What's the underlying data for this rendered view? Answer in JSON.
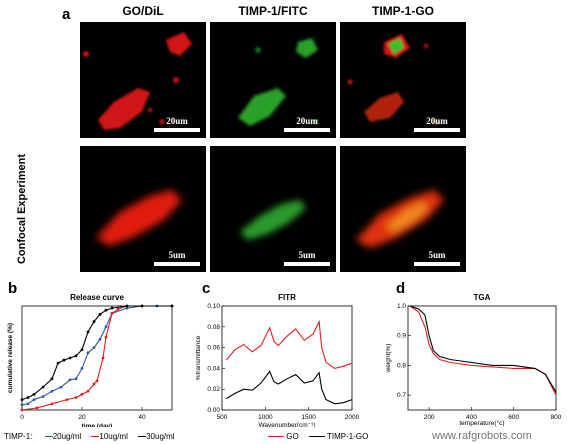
{
  "panel_a": {
    "letter": "a",
    "side_label": "Confocal Experiment",
    "columns": [
      {
        "title": "GO/DiL",
        "color": "#e02020"
      },
      {
        "title": "TIMP-1/FITC",
        "color": "#2fa02f"
      },
      {
        "title": "TIMP-1-GO",
        "color": "#2fa02f"
      }
    ],
    "scale_top": "20um",
    "scale_bottom": "5um"
  },
  "panel_b": {
    "letter": "b",
    "legend_prefix": "TIMP-1:",
    "legend": [
      "20ug/ml",
      "10ug/ml",
      "30ug/ml"
    ]
  },
  "panel_c": {
    "letter": "c",
    "legend": [
      "GO",
      "TIMP-1-GO"
    ]
  },
  "panel_d": {
    "letter": "d",
    "legend": [
      "GO",
      "TIMP-1-GO"
    ]
  },
  "watermark": "www.rafgrobots.com",
  "chart_data": [
    {
      "type": "line",
      "title": "Release curve",
      "xlabel": "time  (day)",
      "ylabel": "cumulative release  (%)",
      "xlim": [
        0,
        50
      ],
      "ylim": [
        0,
        1
      ],
      "xticks": [
        0,
        20,
        40
      ],
      "series": [
        {
          "name": "20ug/ml",
          "color": "#2c5aa0",
          "x": [
            0,
            2,
            4,
            7,
            10,
            13,
            16,
            18,
            20,
            22,
            24,
            26,
            28,
            30,
            35,
            40,
            45,
            50
          ],
          "y": [
            0.05,
            0.06,
            0.1,
            0.13,
            0.18,
            0.22,
            0.29,
            0.3,
            0.4,
            0.55,
            0.6,
            0.68,
            0.8,
            0.93,
            0.98,
            1.0,
            1.0,
            1.0
          ]
        },
        {
          "name": "10ug/ml",
          "color": "#e02020",
          "x": [
            0,
            5,
            10,
            15,
            18,
            20,
            22,
            24,
            25,
            27,
            28,
            30,
            32,
            35,
            40,
            50
          ],
          "y": [
            0.0,
            0.02,
            0.06,
            0.1,
            0.12,
            0.15,
            0.18,
            0.25,
            0.28,
            0.5,
            0.7,
            0.93,
            0.97,
            1.0,
            1.0,
            1.0
          ]
        },
        {
          "name": "30ug/ml",
          "color": "#000000",
          "x": [
            0,
            2,
            4,
            7,
            10,
            12,
            14,
            16,
            18,
            20,
            22,
            24,
            26,
            28,
            30,
            35,
            40,
            50
          ],
          "y": [
            0.1,
            0.12,
            0.15,
            0.22,
            0.3,
            0.45,
            0.48,
            0.5,
            0.52,
            0.58,
            0.75,
            0.85,
            0.92,
            0.96,
            0.98,
            1.0,
            1.0,
            1.0
          ]
        }
      ]
    },
    {
      "type": "line",
      "title": "FITR",
      "xlabel": "Wavenumber(cm⁻¹)",
      "ylabel": "%transmittance",
      "xlim": [
        500,
        2000
      ],
      "ylim": [
        0,
        0.1
      ],
      "xticks": [
        500,
        1000,
        1500,
        2000
      ],
      "yticks": [
        0.0,
        0.02,
        0.04,
        0.06,
        0.08,
        0.1
      ],
      "series": [
        {
          "name": "GO",
          "color": "#e02020",
          "x": [
            550,
            650,
            750,
            850,
            950,
            1050,
            1100,
            1150,
            1250,
            1350,
            1450,
            1550,
            1620,
            1650,
            1700,
            1800,
            1900,
            2000
          ],
          "y": [
            0.048,
            0.058,
            0.063,
            0.056,
            0.062,
            0.079,
            0.066,
            0.062,
            0.071,
            0.078,
            0.067,
            0.073,
            0.085,
            0.06,
            0.046,
            0.04,
            0.042,
            0.045
          ]
        },
        {
          "name": "TIMP-1-GO",
          "color": "#000000",
          "x": [
            550,
            650,
            750,
            850,
            950,
            1050,
            1100,
            1150,
            1250,
            1350,
            1450,
            1550,
            1620,
            1650,
            1700,
            1800,
            1900,
            2000
          ],
          "y": [
            0.011,
            0.016,
            0.02,
            0.019,
            0.026,
            0.037,
            0.027,
            0.025,
            0.03,
            0.034,
            0.026,
            0.028,
            0.036,
            0.02,
            0.01,
            0.006,
            0.007,
            0.01
          ]
        }
      ]
    },
    {
      "type": "line",
      "title": "TGA",
      "xlabel": "temperature(°c)",
      "ylabel": "weight(%)",
      "xlim": [
        100,
        800
      ],
      "ylim": [
        0.65,
        1.0
      ],
      "xticks": [
        200,
        400,
        600,
        800
      ],
      "yticks": [
        0.7,
        0.8,
        0.9,
        1.0
      ],
      "series": [
        {
          "name": "GO",
          "color": "#e02020",
          "x": [
            110,
            150,
            180,
            200,
            220,
            250,
            300,
            400,
            500,
            600,
            700,
            750,
            800
          ],
          "y": [
            1.0,
            0.98,
            0.93,
            0.87,
            0.84,
            0.82,
            0.81,
            0.8,
            0.795,
            0.79,
            0.79,
            0.77,
            0.7
          ]
        },
        {
          "name": "TIMP-1-GO",
          "color": "#000000",
          "x": [
            110,
            150,
            180,
            200,
            220,
            250,
            300,
            400,
            500,
            600,
            700,
            750,
            800
          ],
          "y": [
            1.0,
            0.99,
            0.97,
            0.9,
            0.85,
            0.83,
            0.82,
            0.81,
            0.8,
            0.8,
            0.79,
            0.77,
            0.71
          ]
        }
      ]
    }
  ]
}
